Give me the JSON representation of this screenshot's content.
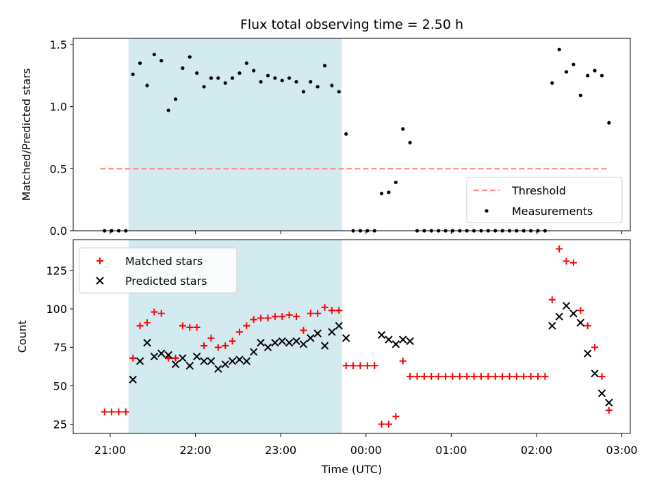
{
  "chart_data": [
    {
      "type": "scatter",
      "title": "Flux total observing time = 2.50 h",
      "ylabel": "Matched/Predicted stars",
      "ylim": [
        0,
        1.55
      ],
      "xlim_hours": [
        "20:34",
        "03:06"
      ],
      "yticks": [
        0.0,
        0.5,
        1.0,
        1.5
      ],
      "ytick_labels": [
        "0.0",
        "0.5",
        "1.0",
        "1.5"
      ],
      "shaded_interval": {
        "start": "21:13",
        "end": "23:43",
        "color": "#d3eaf0"
      },
      "legend": {
        "placement": "lower-right",
        "entries": [
          "Threshold",
          "Measurements"
        ]
      },
      "series": [
        {
          "name": "Threshold",
          "marker": "dashed-line",
          "color": "#ff7f7f",
          "x": [
            "20:53",
            "02:51"
          ],
          "y": [
            0.5,
            0.5
          ]
        },
        {
          "name": "Measurements",
          "marker": "dot",
          "color": "#000000",
          "x": [
            "20:56",
            "21:01",
            "21:06",
            "21:11",
            "21:16",
            "21:21",
            "21:26",
            "21:31",
            "21:36",
            "21:41",
            "21:46",
            "21:51",
            "21:56",
            "22:01",
            "22:06",
            "22:11",
            "22:16",
            "22:21",
            "22:26",
            "22:31",
            "22:36",
            "22:41",
            "22:46",
            "22:51",
            "22:56",
            "23:01",
            "23:06",
            "23:11",
            "23:16",
            "23:21",
            "23:26",
            "23:31",
            "23:36",
            "23:41",
            "23:46",
            "23:51",
            "23:56",
            "00:01",
            "00:06",
            "00:11",
            "00:16",
            "00:21",
            "00:26",
            "00:31",
            "00:36",
            "00:41",
            "00:46",
            "00:51",
            "00:56",
            "01:01",
            "01:06",
            "01:11",
            "01:16",
            "01:21",
            "01:26",
            "01:31",
            "01:36",
            "01:41",
            "01:46",
            "01:51",
            "01:56",
            "02:01",
            "02:06",
            "02:11",
            "02:16",
            "02:21",
            "02:26",
            "02:31",
            "02:36",
            "02:41",
            "02:46",
            "02:51"
          ],
          "y": [
            0,
            0,
            0,
            0,
            1.26,
            1.35,
            1.17,
            1.42,
            1.37,
            0.97,
            1.06,
            1.31,
            1.4,
            1.27,
            1.16,
            1.23,
            1.23,
            1.19,
            1.23,
            1.27,
            1.35,
            1.29,
            1.2,
            1.25,
            1.23,
            1.21,
            1.23,
            1.2,
            1.12,
            1.2,
            1.16,
            1.33,
            1.17,
            1.12,
            0.78,
            0,
            0,
            0,
            0,
            0.3,
            0.31,
            0.39,
            0.82,
            0.71,
            0,
            0,
            0,
            0,
            0,
            0,
            0,
            0,
            0,
            0,
            0,
            0,
            0,
            0,
            0,
            0,
            0,
            0,
            0,
            1.19,
            1.46,
            1.28,
            1.34,
            1.09,
            1.25,
            1.29,
            1.25,
            0.87
          ]
        }
      ]
    },
    {
      "type": "scatter",
      "xlabel": "Time (UTC)",
      "ylabel": "Count",
      "ylim": [
        19,
        145
      ],
      "xlim_hours": [
        "20:34",
        "03:06"
      ],
      "yticks": [
        25,
        50,
        75,
        100,
        125
      ],
      "ytick_labels": [
        "25",
        "50",
        "75",
        "100",
        "125"
      ],
      "xticks": [
        "21:00",
        "22:00",
        "23:00",
        "00:00",
        "01:00",
        "02:00",
        "03:00"
      ],
      "xtick_labels": [
        "21:00",
        "22:00",
        "23:00",
        "00:00",
        "01:00",
        "02:00",
        "03:00"
      ],
      "shaded_interval": {
        "start": "21:13",
        "end": "23:43",
        "color": "#d3eaf0"
      },
      "legend": {
        "placement": "top-left",
        "entries": [
          "Matched stars",
          "Predicted stars"
        ]
      },
      "series": [
        {
          "name": "Matched stars",
          "marker": "plus",
          "color": "#ff0000",
          "x": [
            "20:56",
            "21:01",
            "21:06",
            "21:11",
            "21:16",
            "21:21",
            "21:26",
            "21:31",
            "21:36",
            "21:41",
            "21:46",
            "21:51",
            "21:56",
            "22:01",
            "22:06",
            "22:11",
            "22:16",
            "22:21",
            "22:26",
            "22:31",
            "22:36",
            "22:41",
            "22:46",
            "22:51",
            "22:56",
            "23:01",
            "23:06",
            "23:11",
            "23:16",
            "23:21",
            "23:26",
            "23:31",
            "23:36",
            "23:41",
            "23:46",
            "23:51",
            "23:56",
            "00:01",
            "00:06",
            "00:11",
            "00:16",
            "00:21",
            "00:26",
            "00:31",
            "00:36",
            "00:41",
            "00:46",
            "00:51",
            "00:56",
            "01:01",
            "01:06",
            "01:11",
            "01:16",
            "01:21",
            "01:26",
            "01:31",
            "01:36",
            "01:41",
            "01:46",
            "01:51",
            "01:56",
            "02:01",
            "02:06",
            "02:11",
            "02:16",
            "02:21",
            "02:26",
            "02:31",
            "02:36",
            "02:41",
            "02:46",
            "02:51"
          ],
          "y": [
            33,
            33,
            33,
            33,
            68,
            89,
            91,
            98,
            97,
            68,
            68,
            89,
            88,
            88,
            76,
            81,
            75,
            76,
            79,
            85,
            89,
            93,
            94,
            94,
            95,
            95,
            96,
            95,
            86,
            97,
            97,
            101,
            99,
            99,
            63,
            63,
            63,
            63,
            63,
            25,
            25,
            30,
            66,
            56,
            56,
            56,
            56,
            56,
            56,
            56,
            56,
            56,
            56,
            56,
            56,
            56,
            56,
            56,
            56,
            56,
            56,
            56,
            56,
            106,
            139,
            131,
            130,
            99,
            89,
            75,
            56,
            34
          ]
        },
        {
          "name": "Predicted stars",
          "marker": "x",
          "color": "#000000",
          "x": [
            "21:16",
            "21:21",
            "21:26",
            "21:31",
            "21:36",
            "21:41",
            "21:46",
            "21:51",
            "21:56",
            "22:01",
            "22:06",
            "22:11",
            "22:16",
            "22:21",
            "22:26",
            "22:31",
            "22:36",
            "22:41",
            "22:46",
            "22:51",
            "22:56",
            "23:01",
            "23:06",
            "23:11",
            "23:16",
            "23:21",
            "23:26",
            "23:31",
            "23:36",
            "23:41",
            "23:46",
            "00:11",
            "00:16",
            "00:21",
            "00:26",
            "00:31",
            "02:11",
            "02:16",
            "02:21",
            "02:26",
            "02:31",
            "02:36",
            "02:41",
            "02:46",
            "02:51"
          ],
          "y": [
            54,
            66,
            78,
            69,
            71,
            70,
            64,
            68,
            63,
            69,
            66,
            66,
            61,
            64,
            66,
            67,
            66,
            72,
            78,
            75,
            78,
            79,
            78,
            79,
            77,
            81,
            84,
            76,
            85,
            89,
            81,
            83,
            80,
            77,
            80,
            79,
            89,
            95,
            102,
            97,
            91,
            71,
            58,
            45,
            39
          ]
        }
      ]
    }
  ]
}
